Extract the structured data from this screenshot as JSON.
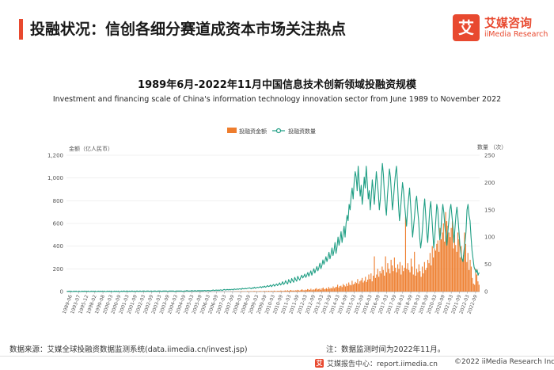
{
  "header": {
    "title": "投融状况：信创各细分赛道成资本市场关注热点",
    "logo_mark": "艾",
    "logo_cn": "艾媒咨询",
    "logo_en": "iiMedia Research"
  },
  "footer": {
    "source": "数据来源：艾媒全球投融资数据监测系统(data.iimedia.cn/invest.jsp)",
    "note": "注：数据监测时间为2022年11月。",
    "brand_mark": "艾",
    "brand_text": "艾媒报告中心：report.iimedia.cn",
    "copyright": "©2022  iiMedia Research Inc"
  },
  "colors": {
    "accent": "#e8492f",
    "bar": "#ee7d2d",
    "line": "#1f9e84",
    "grid": "#e6e6e6"
  },
  "chart_data": {
    "type": "bar",
    "title": "1989年6月-2022年11月中国信息技术创新领域投融资规模",
    "subtitle": "Investment and financing scale of China's information technology innovation sector from June 1989 to November 2022",
    "legend": [
      "投融资金额",
      "投融资数量"
    ],
    "legend_position": "top-center",
    "ylabel_left": "金额（亿人民币）",
    "ylabel_right": "数量 （次）",
    "ylim_left": [
      0,
      1200
    ],
    "ylim_right": [
      0,
      250
    ],
    "yticks_left": [
      "0",
      "200",
      "400",
      "600",
      "800",
      "1,000",
      "1,200"
    ],
    "yticks_right": [
      "0",
      "50",
      "100",
      "150",
      "200",
      "250"
    ],
    "grid": true,
    "xtick_labels": [
      "1989-06",
      "1993-07",
      "1995-12",
      "1998-02",
      "1999-08",
      "2000-03",
      "2000-09",
      "2001-03",
      "2001-09",
      "2002-03",
      "2002-09",
      "2003-03",
      "2003-09",
      "2004-03",
      "2004-09",
      "2005-03",
      "2005-09",
      "2006-03",
      "2006-09",
      "2007-03",
      "2007-09",
      "2008-03",
      "2008-09",
      "2009-03",
      "2009-09",
      "2010-03",
      "2010-09",
      "2011-03",
      "2011-09",
      "2012-03",
      "2012-09",
      "2013-03",
      "2013-09",
      "2014-03",
      "2014-09",
      "2015-03",
      "2015-09",
      "2016-03",
      "2016-09",
      "2017-03",
      "2017-09",
      "2018-03",
      "2018-09",
      "2019-03",
      "2019-09",
      "2020-03",
      "2020-09",
      "2021-03",
      "2021-09",
      "2022-03",
      "2022-09"
    ],
    "series": [
      {
        "name": "投融资金额",
        "axis": "left",
        "kind": "bar",
        "values": [
          0,
          0,
          0,
          0,
          0,
          0,
          0,
          0,
          0,
          0,
          0,
          0,
          0,
          0,
          0,
          0,
          0,
          0,
          0,
          2,
          0,
          0,
          0,
          0,
          0,
          0,
          0,
          0,
          0,
          0,
          0,
          0,
          0,
          0,
          0,
          0,
          0,
          0,
          0,
          0,
          0,
          0,
          0,
          0,
          0,
          0,
          0,
          0,
          0,
          0,
          0,
          0,
          0,
          0,
          0,
          0,
          0,
          0,
          0,
          0,
          3,
          0,
          0,
          0,
          0,
          0,
          0,
          0,
          0,
          0,
          0,
          0,
          0,
          0,
          0,
          0,
          0,
          0,
          0,
          0,
          0,
          0,
          0,
          0,
          0,
          0,
          0,
          0,
          0,
          0,
          1,
          0,
          0,
          0,
          0,
          0,
          0,
          0,
          0,
          0,
          0,
          0,
          0,
          0,
          0,
          0,
          0,
          0,
          0,
          0,
          0,
          0,
          0,
          0,
          0,
          0,
          1,
          0,
          0,
          0,
          0,
          0,
          0,
          0,
          0,
          0,
          0,
          0,
          0,
          0,
          0,
          0,
          0,
          0,
          0,
          0,
          0,
          0,
          0,
          0,
          0,
          0,
          0,
          0,
          0,
          0,
          0,
          2,
          1,
          0,
          1,
          2,
          1,
          3,
          2,
          1,
          2,
          4,
          2,
          3,
          2,
          1,
          5,
          3,
          2,
          4,
          3,
          2,
          6,
          3,
          4,
          2,
          3,
          5,
          4,
          3,
          2,
          6,
          4,
          5,
          3,
          7,
          4,
          5,
          6,
          3,
          8,
          5,
          4,
          6,
          7,
          5,
          9,
          6,
          4,
          8,
          10,
          6,
          12,
          7,
          9,
          14,
          8,
          10,
          6,
          12,
          9,
          15,
          11,
          8,
          14,
          20,
          12,
          10,
          16,
          13,
          22,
          18,
          14,
          25,
          12,
          20,
          16,
          24,
          30,
          18,
          22,
          26,
          15,
          28,
          35,
          20,
          24,
          30,
          22,
          40,
          26,
          32,
          28,
          45,
          30,
          38,
          42,
          60,
          35,
          48,
          52,
          40,
          66,
          55,
          45,
          70,
          50,
          80,
          60,
          55,
          95,
          62,
          70,
          85,
          75,
          110,
          68,
          90,
          100,
          120,
          80,
          95,
          130,
          85,
          105,
          150,
          110,
          160,
          90,
          140,
          310,
          120,
          150,
          200,
          130,
          180,
          160,
          220,
          190,
          140,
          310,
          170,
          250,
          200,
          160,
          280,
          230,
          180,
          300,
          210,
          170,
          240,
          200,
          260,
          150,
          230,
          180,
          210,
          660,
          200,
          250,
          190,
          170,
          290,
          220,
          150,
          350,
          140,
          200,
          170,
          240,
          180,
          130,
          220,
          160,
          260,
          190,
          210,
          280,
          250,
          340,
          230,
          400,
          300,
          380,
          360,
          420,
          450,
          350,
          560,
          460,
          520,
          600,
          440,
          700,
          620,
          580,
          520,
          480,
          560,
          620,
          380,
          500,
          410,
          350,
          520,
          460,
          300,
          400,
          280,
          320,
          520,
          420,
          260,
          340,
          190,
          280,
          220,
          120,
          70,
          60,
          200,
          150,
          90,
          60
        ]
      },
      {
        "name": "投融资数量",
        "axis": "right",
        "kind": "line",
        "values": [
          1,
          0,
          1,
          0,
          1,
          0,
          0,
          1,
          0,
          1,
          0,
          0,
          1,
          0,
          0,
          1,
          0,
          1,
          0,
          1,
          0,
          1,
          0,
          0,
          1,
          0,
          1,
          0,
          1,
          0,
          0,
          1,
          0,
          1,
          0,
          1,
          0,
          1,
          0,
          0,
          1,
          0,
          1,
          0,
          1,
          0,
          0,
          1,
          0,
          1,
          0,
          1,
          0,
          0,
          1,
          0,
          1,
          1,
          0,
          1,
          1,
          0,
          1,
          0,
          1,
          1,
          0,
          1,
          0,
          1,
          1,
          0,
          1,
          1,
          0,
          1,
          1,
          1,
          0,
          1,
          1,
          1,
          0,
          1,
          1,
          0,
          1,
          1,
          1,
          0,
          1,
          1,
          1,
          1,
          0,
          1,
          1,
          1,
          1,
          1,
          0,
          1,
          1,
          1,
          1,
          1,
          1,
          0,
          1,
          1,
          1,
          1,
          1,
          1,
          1,
          0,
          1,
          1,
          1,
          2,
          1,
          1,
          1,
          1,
          2,
          1,
          1,
          2,
          1,
          1,
          2,
          1,
          2,
          1,
          2,
          1,
          2,
          2,
          1,
          2,
          2,
          2,
          1,
          2,
          2,
          3,
          2,
          2,
          3,
          2,
          3,
          2,
          3,
          3,
          2,
          3,
          4,
          3,
          3,
          4,
          3,
          4,
          3,
          4,
          4,
          3,
          5,
          4,
          4,
          5,
          4,
          5,
          5,
          4,
          6,
          5,
          5,
          6,
          5,
          6,
          6,
          7,
          6,
          5,
          7,
          6,
          8,
          6,
          7,
          8,
          7,
          8,
          9,
          7,
          9,
          8,
          10,
          8,
          9,
          11,
          9,
          10,
          12,
          9,
          11,
          13,
          10,
          12,
          14,
          11,
          13,
          16,
          12,
          14,
          18,
          13,
          15,
          20,
          16,
          14,
          22,
          18,
          16,
          24,
          20,
          17,
          26,
          22,
          19,
          28,
          24,
          21,
          26,
          30,
          25,
          28,
          32,
          26,
          30,
          35,
          28,
          33,
          38,
          30,
          36,
          42,
          34,
          40,
          46,
          38,
          44,
          52,
          42,
          48,
          58,
          50,
          56,
          64,
          55,
          62,
          72,
          60,
          68,
          80,
          66,
          75,
          90,
          70,
          82,
          100,
          85,
          95,
          110,
          90,
          105,
          120,
          100,
          125,
          140,
          130,
          160,
          150,
          175,
          190,
          170,
          200,
          220,
          210,
          185,
          230,
          200,
          175,
          195,
          160,
          180,
          210,
          190,
          230,
          200,
          170,
          185,
          150,
          175,
          205,
          185,
          160,
          190,
          220,
          200,
          180,
          150,
          170,
          205,
          235,
          215,
          180,
          160,
          140,
          175,
          200,
          225,
          210,
          180,
          150,
          170,
          195,
          215,
          230,
          200,
          160,
          130,
          150,
          175,
          200,
          185,
          160,
          140,
          120,
          150,
          170,
          190,
          160,
          130,
          100,
          120,
          140,
          165,
          175,
          150,
          130,
          100,
          80,
          95,
          120,
          150,
          170,
          140,
          110,
          90,
          120,
          150,
          165,
          140,
          110,
          80,
          100,
          130,
          160,
          150,
          120,
          95,
          110,
          140,
          160,
          145,
          120,
          100,
          85,
          110,
          130,
          150,
          160,
          140,
          120,
          90,
          115,
          140,
          155,
          135,
          110,
          85,
          70,
          60,
          55,
          75,
          90,
          110,
          150,
          160,
          140,
          130,
          100,
          75,
          60,
          45,
          40,
          35,
          40,
          30,
          35
        ]
      }
    ]
  }
}
